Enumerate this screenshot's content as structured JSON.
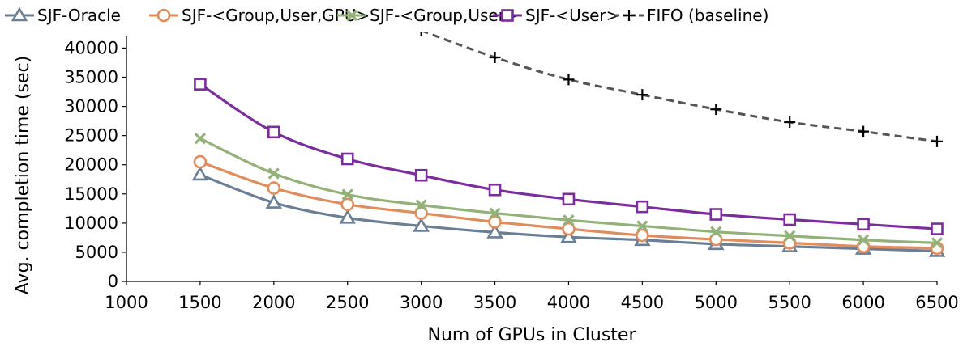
{
  "chart_data": {
    "type": "line",
    "title": "",
    "xlabel": "Num of GPUs in Cluster",
    "ylabel": "Avg. completion time (sec)",
    "xlim": [
      1000,
      6500
    ],
    "ylim": [
      0,
      42000
    ],
    "x_ticks": [
      1000,
      1500,
      2000,
      2500,
      3000,
      3500,
      4000,
      4500,
      5000,
      5500,
      6000,
      6500
    ],
    "y_ticks": [
      0,
      5000,
      10000,
      15000,
      20000,
      25000,
      30000,
      35000,
      40000
    ],
    "grid": false,
    "legend_position": "top",
    "series": [
      {
        "name": "SJF-Oracle",
        "color": "#6a7f96",
        "marker": "triangle",
        "dash": "solid",
        "x": [
          1500,
          2000,
          2500,
          3000,
          3500,
          4000,
          4500,
          5000,
          5500,
          6000,
          6500
        ],
        "y": [
          18300,
          13500,
          10900,
          9500,
          8400,
          7600,
          7100,
          6400,
          6000,
          5600,
          5200
        ]
      },
      {
        "name": "SJF-<Group,User,GPU>",
        "color": "#e08c5c",
        "marker": "circle",
        "dash": "solid",
        "x": [
          1500,
          2000,
          2500,
          3000,
          3500,
          4000,
          4500,
          5000,
          5500,
          6000,
          6500
        ],
        "y": [
          20500,
          16000,
          13200,
          11700,
          10200,
          9000,
          7900,
          7200,
          6600,
          6000,
          5700
        ]
      },
      {
        "name": "SJF-<Group,User>",
        "color": "#93b27a",
        "marker": "x",
        "dash": "solid",
        "x": [
          1500,
          2000,
          2500,
          3000,
          3500,
          4000,
          4500,
          5000,
          5500,
          6000,
          6500
        ],
        "y": [
          24500,
          18500,
          14900,
          13100,
          11700,
          10500,
          9500,
          8500,
          7800,
          7100,
          6600
        ]
      },
      {
        "name": "SJF-<User>",
        "color": "#7b2d9e",
        "marker": "square",
        "dash": "solid",
        "x": [
          1500,
          2000,
          2500,
          3000,
          3500,
          4000,
          4500,
          5000,
          5500,
          6000,
          6500
        ],
        "y": [
          33800,
          25600,
          21000,
          18200,
          15700,
          14100,
          12800,
          11500,
          10600,
          9800,
          9000
        ]
      },
      {
        "name": "FIFO (baseline)",
        "color": "#555555",
        "marker": "plus",
        "dash": "dashed",
        "x": [
          3000,
          3500,
          4000,
          4500,
          5000,
          5500,
          6000,
          6500
        ],
        "y": [
          43000,
          38400,
          34600,
          32000,
          29500,
          27300,
          25700,
          24000
        ]
      }
    ]
  }
}
